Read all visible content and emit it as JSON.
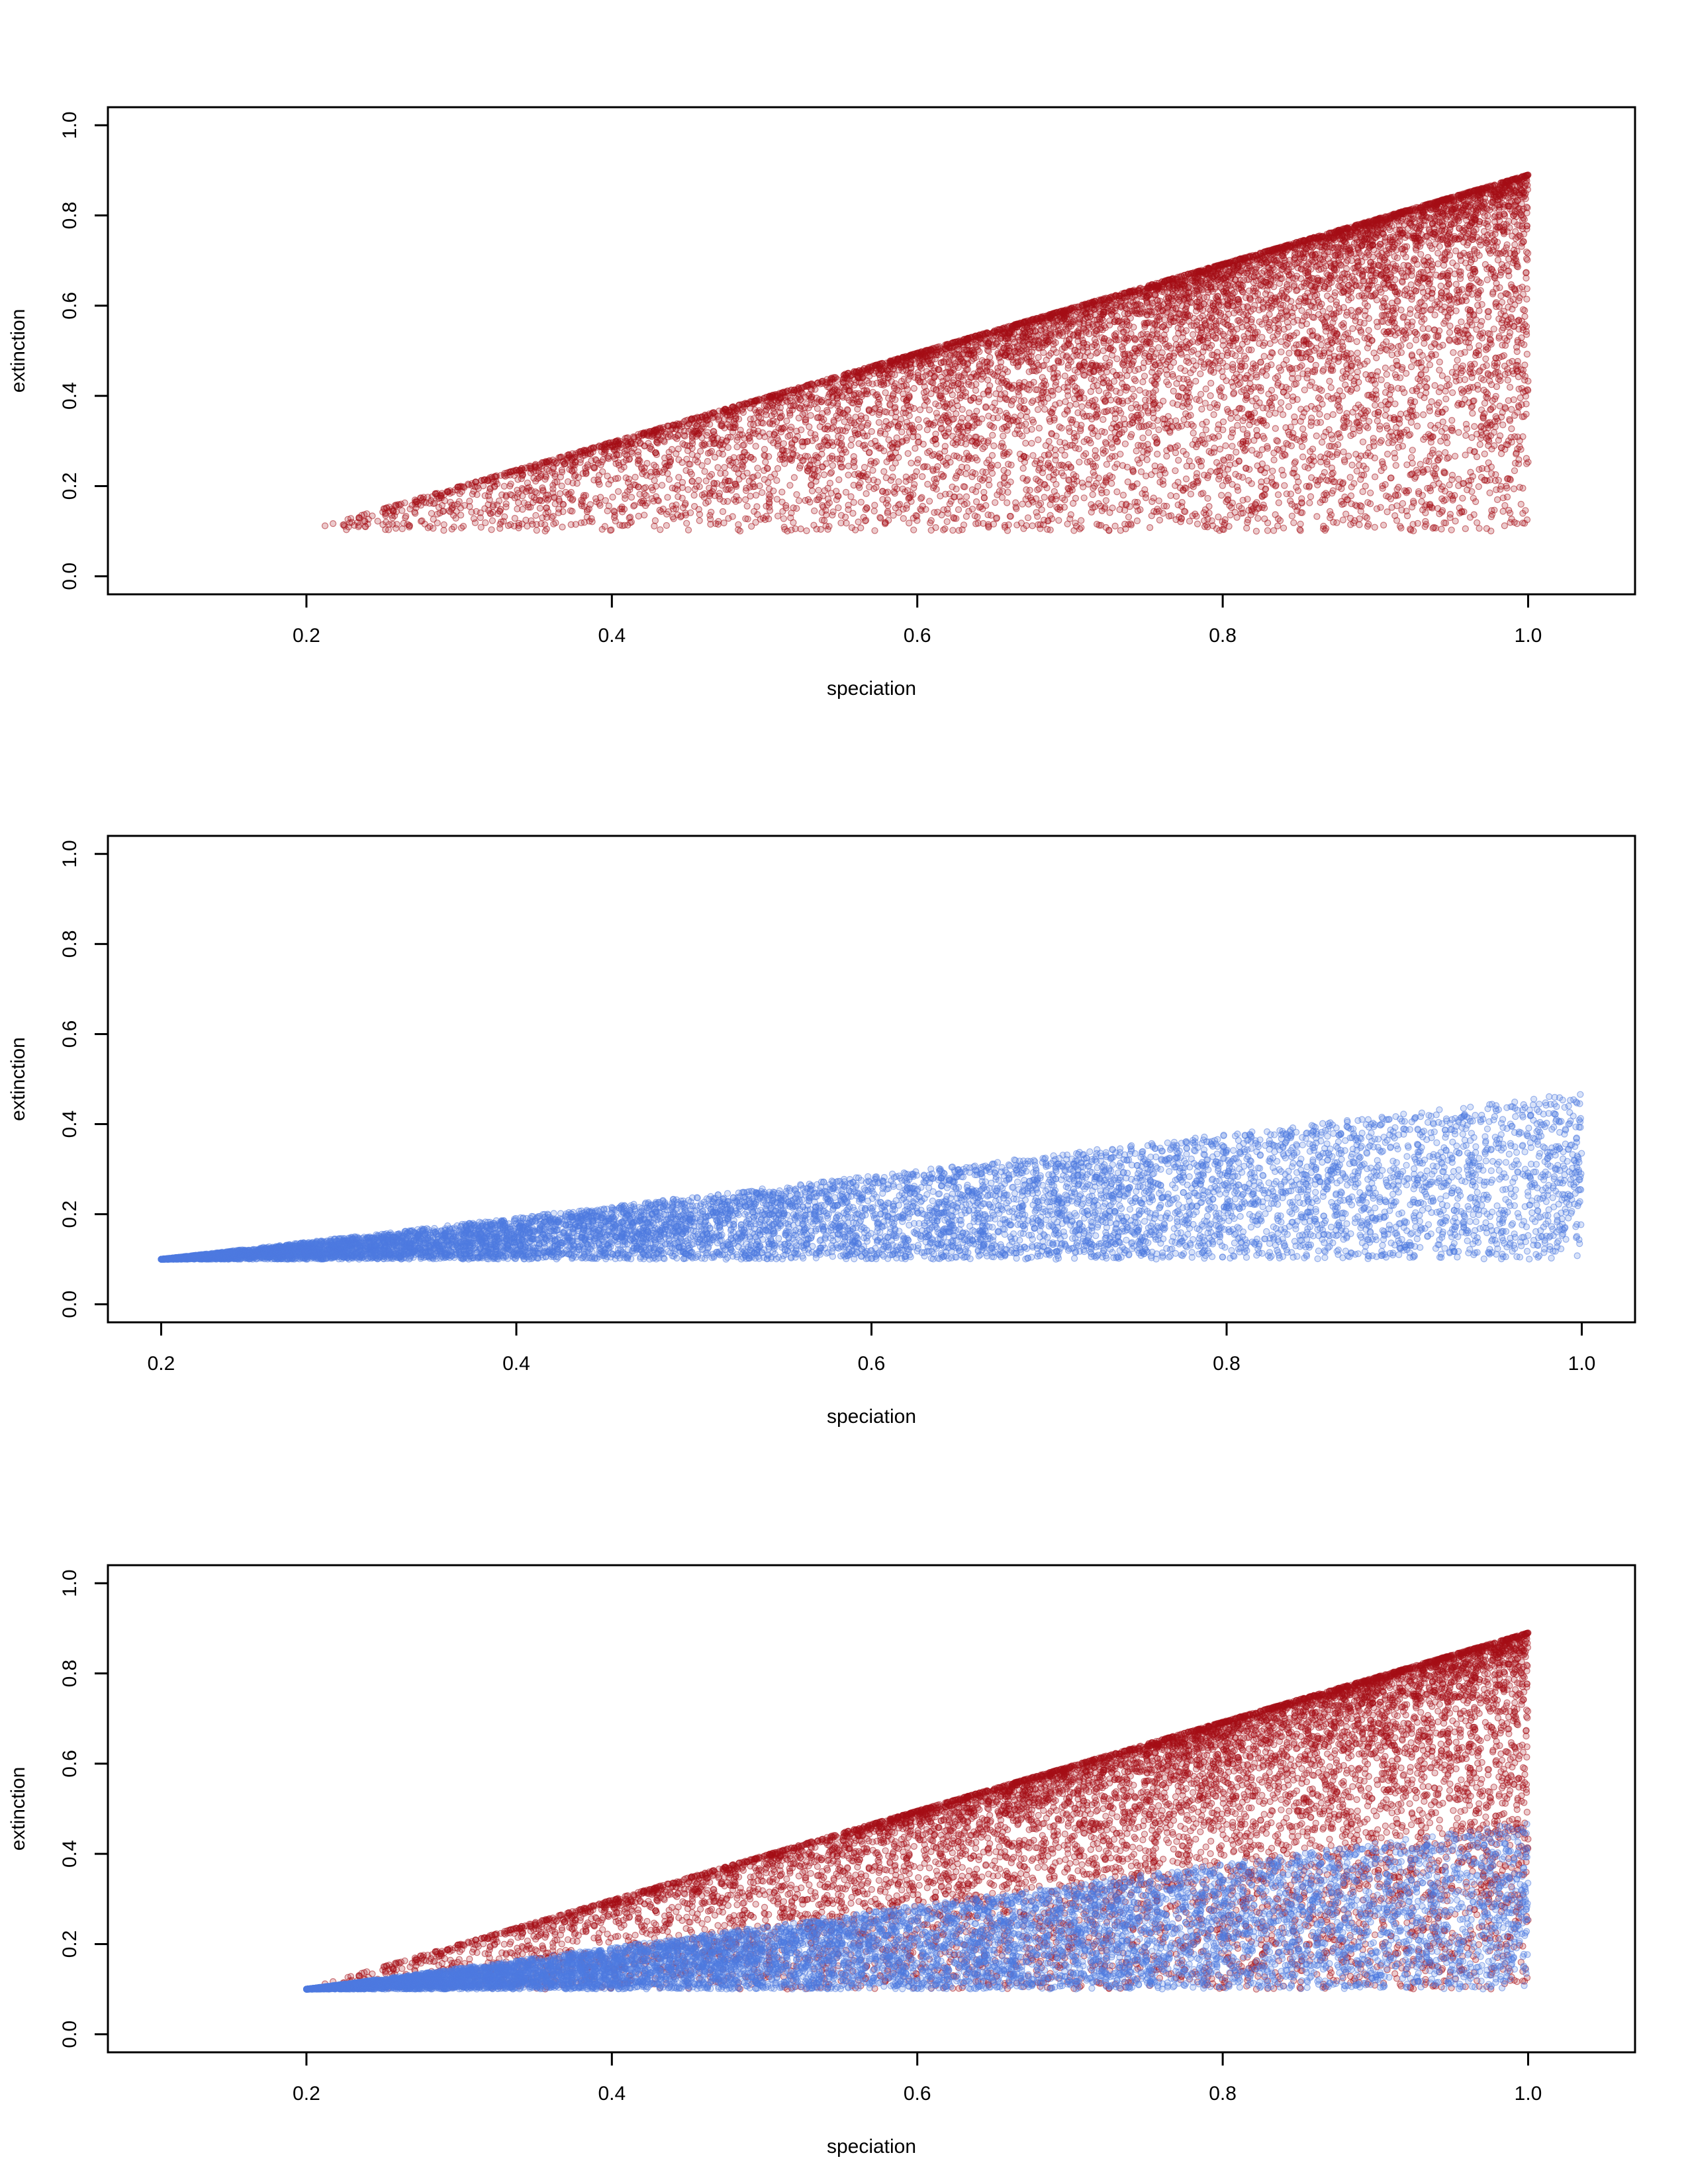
{
  "chart_data": [
    {
      "type": "scatter",
      "xlabel": "speciation",
      "ylabel": "extinction",
      "xlim": [
        0.07,
        1.07
      ],
      "ylim": [
        -0.04,
        1.04
      ],
      "xticks": [
        "0.2",
        "0.4",
        "0.6",
        "0.8",
        "1.0"
      ],
      "yticks": [
        "0.0",
        "0.2",
        "0.4",
        "0.6",
        "0.8",
        "1.0"
      ],
      "grid": false,
      "series": [
        {
          "color": "#a50f15",
          "distribution": "triangular wedge",
          "x_range": [
            0.2,
            1.0
          ],
          "y_min": 0.1,
          "y_max_at_x": [
            [
              0.2,
              0.1
            ],
            [
              1.0,
              0.89
            ]
          ],
          "density": "concentrated near the upper edge",
          "point_count_approx": 9000
        }
      ]
    },
    {
      "type": "scatter",
      "xlabel": "speciation",
      "ylabel": "extinction",
      "xlim": [
        0.17,
        1.03
      ],
      "ylim": [
        -0.04,
        1.04
      ],
      "xticks": [
        "0.2",
        "0.4",
        "0.6",
        "0.8",
        "1.0"
      ],
      "yticks": [
        "0.0",
        "0.2",
        "0.4",
        "0.6",
        "0.8",
        "1.0"
      ],
      "grid": false,
      "series": [
        {
          "color": "#4f7ae0",
          "distribution": "wedge",
          "x_range": [
            0.2,
            1.0
          ],
          "y_min": 0.1,
          "y_max_at_x": [
            [
              0.2,
              0.1
            ],
            [
              1.0,
              0.47
            ]
          ],
          "density": "concentrated near low speciation",
          "point_count_approx": 9000
        }
      ]
    },
    {
      "type": "scatter",
      "xlabel": "speciation",
      "ylabel": "extinction",
      "xlim": [
        0.07,
        1.07
      ],
      "ylim": [
        -0.04,
        1.04
      ],
      "xticks": [
        "0.2",
        "0.4",
        "0.6",
        "0.8",
        "1.0"
      ],
      "yticks": [
        "0.0",
        "0.2",
        "0.4",
        "0.6",
        "0.8",
        "1.0"
      ],
      "grid": false,
      "series": [
        {
          "color": "#a50f15",
          "distribution": "triangular wedge",
          "x_range": [
            0.2,
            1.0
          ],
          "y_min": 0.1,
          "y_max_at_x": [
            [
              0.2,
              0.1
            ],
            [
              1.0,
              0.89
            ]
          ],
          "density": "concentrated near the upper edge",
          "point_count_approx": 9000
        },
        {
          "color": "#4f7ae0",
          "distribution": "wedge",
          "x_range": [
            0.2,
            1.0
          ],
          "y_min": 0.1,
          "y_max_at_x": [
            [
              0.2,
              0.1
            ],
            [
              1.0,
              0.47
            ]
          ],
          "density": "concentrated near low speciation",
          "point_count_approx": 9000
        }
      ]
    }
  ]
}
